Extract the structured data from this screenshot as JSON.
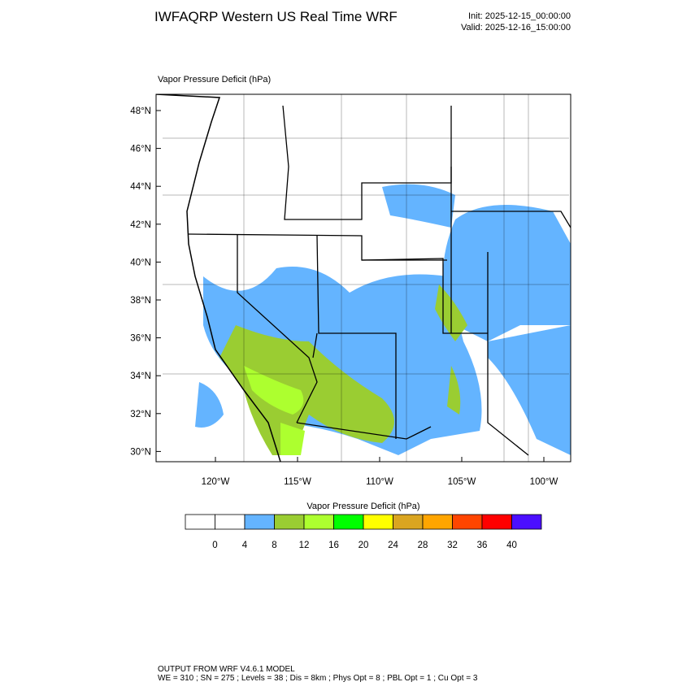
{
  "header": {
    "title": "IWFAQRP Western US Real Time WRF",
    "init": "Init: 2025-12-15_00:00:00",
    "valid": "Valid: 2025-12-16_15:00:00"
  },
  "map": {
    "label": "Vapor Pressure Deficit   (hPa)",
    "lat_ticks": [
      "48°N",
      "46°N",
      "44°N",
      "42°N",
      "40°N",
      "38°N",
      "36°N",
      "34°N",
      "32°N",
      "30°N"
    ],
    "lon_ticks": [
      "120°W",
      "115°W",
      "110°W",
      "105°W",
      "100°W"
    ]
  },
  "colorbar": {
    "title": "Vapor Pressure Deficit  (hPa)",
    "colors": [
      "#ffffff",
      "#ffffff",
      "#64b4ff",
      "#9acd32",
      "#adff2f",
      "#00ff00",
      "#ffff00",
      "#daa520",
      "#ffa500",
      "#ff4500",
      "#ff0000",
      "#4b0fff"
    ],
    "labels": [
      0,
      4,
      8,
      12,
      16,
      20,
      24,
      28,
      32,
      36,
      40
    ]
  },
  "footer": {
    "line1": "OUTPUT FROM WRF V4.6.1 MODEL",
    "line2": "WE = 310 ; SN = 275 ; Levels = 38 ; Dis = 8km ; Phys Opt = 8 ; PBL Opt = 1 ; Cu Opt = 3"
  }
}
